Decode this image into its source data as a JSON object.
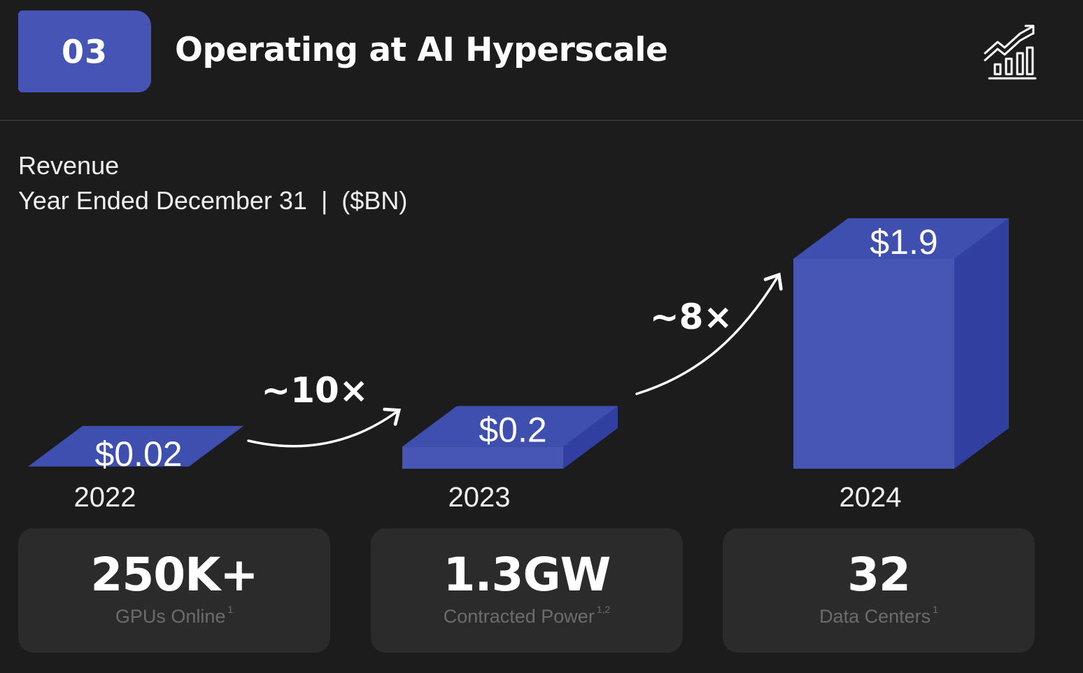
{
  "header": {
    "badge": "03",
    "title": "Operating at AI Hyperscale",
    "icon": "growth-chart-icon"
  },
  "subtitle": {
    "line1": "Revenue",
    "line2": "Year Ended December 31  |  ($BN)"
  },
  "chart_data": {
    "type": "bar",
    "categories": [
      "2022",
      "2023",
      "2024"
    ],
    "values": [
      0.02,
      0.2,
      1.9
    ],
    "value_labels": [
      "$0.02",
      "$0.2",
      "$1.9"
    ],
    "annotations": [
      "~10×",
      "~8×"
    ],
    "ylabel": "($BN)",
    "grid": false,
    "colors": {
      "front": "#4656b2",
      "top": "#3e4fb0",
      "side": "#3140a0"
    }
  },
  "stats": [
    {
      "value": "250K+",
      "label": "GPUs Online",
      "note": "1"
    },
    {
      "value": "1.3GW",
      "label": "Contracted Power",
      "note": "1,2"
    },
    {
      "value": "32",
      "label": "Data Centers",
      "note": "1"
    }
  ],
  "colors": {
    "background": "#1c1c1c",
    "accent": "#4655b5",
    "card": "#2b2b2b"
  }
}
